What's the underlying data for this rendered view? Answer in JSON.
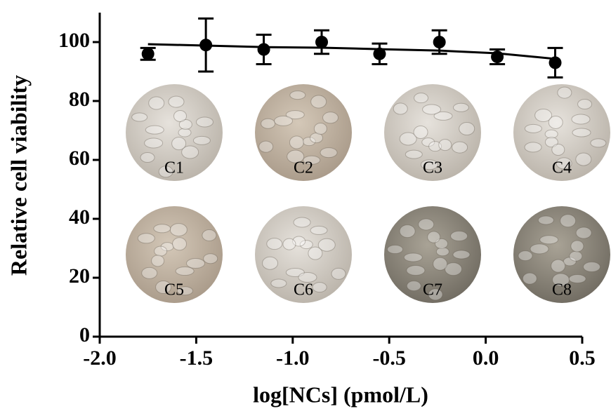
{
  "chart_data": {
    "type": "scatter",
    "xlabel": "log[NCs] (pmol/L)",
    "ylabel": "Relative cell viability",
    "xlim": [
      -2.0,
      0.5
    ],
    "xticks": [
      {
        "value": -2.0,
        "label": "-2.0"
      },
      {
        "value": -1.5,
        "label": "-1.5"
      },
      {
        "value": -1.0,
        "label": "-1.0"
      },
      {
        "value": -0.5,
        "label": "-0.5"
      },
      {
        "value": 0.0,
        "label": "0.0"
      },
      0.5
    ],
    "ylim": [
      0,
      110
    ],
    "yticks": [
      0,
      20,
      40,
      60,
      80,
      100
    ],
    "x": [
      -1.75,
      -1.45,
      -1.15,
      -0.85,
      -0.55,
      -0.24,
      0.06,
      0.36
    ],
    "series": [
      {
        "values": [
          96,
          99,
          97.5,
          100,
          96,
          100,
          95,
          93
        ],
        "errors": [
          2,
          9,
          5,
          4,
          3.5,
          4,
          2.5,
          5
        ],
        "color": "#000000"
      }
    ],
    "fit": {
      "values": [
        99.3,
        98.8,
        98.3,
        98.1,
        97.6,
        97.1,
        96.2,
        94.3
      ],
      "color": "#000000"
    },
    "insets": [
      "C1",
      "C2",
      "C3",
      "C4",
      "C5",
      "C6",
      "C7",
      "C8"
    ]
  }
}
